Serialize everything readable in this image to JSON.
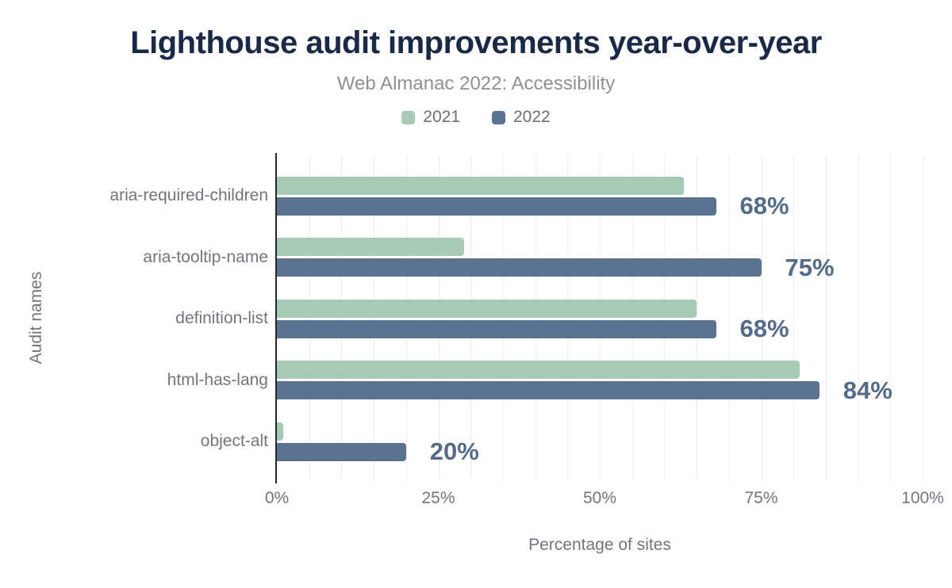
{
  "chart_data": {
    "type": "bar",
    "orientation": "horizontal",
    "title": "Lighthouse audit improvements year-over-year",
    "subtitle": "Web Almanac 2022: Accessibility",
    "xlabel": "Percentage of sites",
    "ylabel": "Audit names",
    "categories": [
      "aria-required-children",
      "aria-tooltip-name",
      "definition-list",
      "html-has-lang",
      "object-alt"
    ],
    "series": [
      {
        "name": "2021",
        "color": "#a6cab6",
        "values": [
          63,
          29,
          65,
          81,
          1
        ]
      },
      {
        "name": "2022",
        "color": "#5b7291",
        "values": [
          68,
          75,
          68,
          84,
          20
        ]
      }
    ],
    "value_labels": {
      "series": "2022",
      "labels": [
        "68%",
        "75%",
        "68%",
        "84%",
        "20%"
      ]
    },
    "x_ticks": [
      {
        "value": 0,
        "label": "0%"
      },
      {
        "value": 25,
        "label": "25%"
      },
      {
        "value": 50,
        "label": "50%"
      },
      {
        "value": 75,
        "label": "75%"
      },
      {
        "value": 100,
        "label": "100%"
      }
    ],
    "xlim": [
      0,
      100
    ],
    "grid": {
      "show": true,
      "interval_percent": 5,
      "color": "#ededf0"
    },
    "legend_position": "top",
    "colors": {
      "title": "#1a2947",
      "subtitle": "#8e9095",
      "axis_text": "#74747c",
      "value_label": "#546a8b",
      "axis_line": "#26262e",
      "background": "#ffffff"
    }
  }
}
